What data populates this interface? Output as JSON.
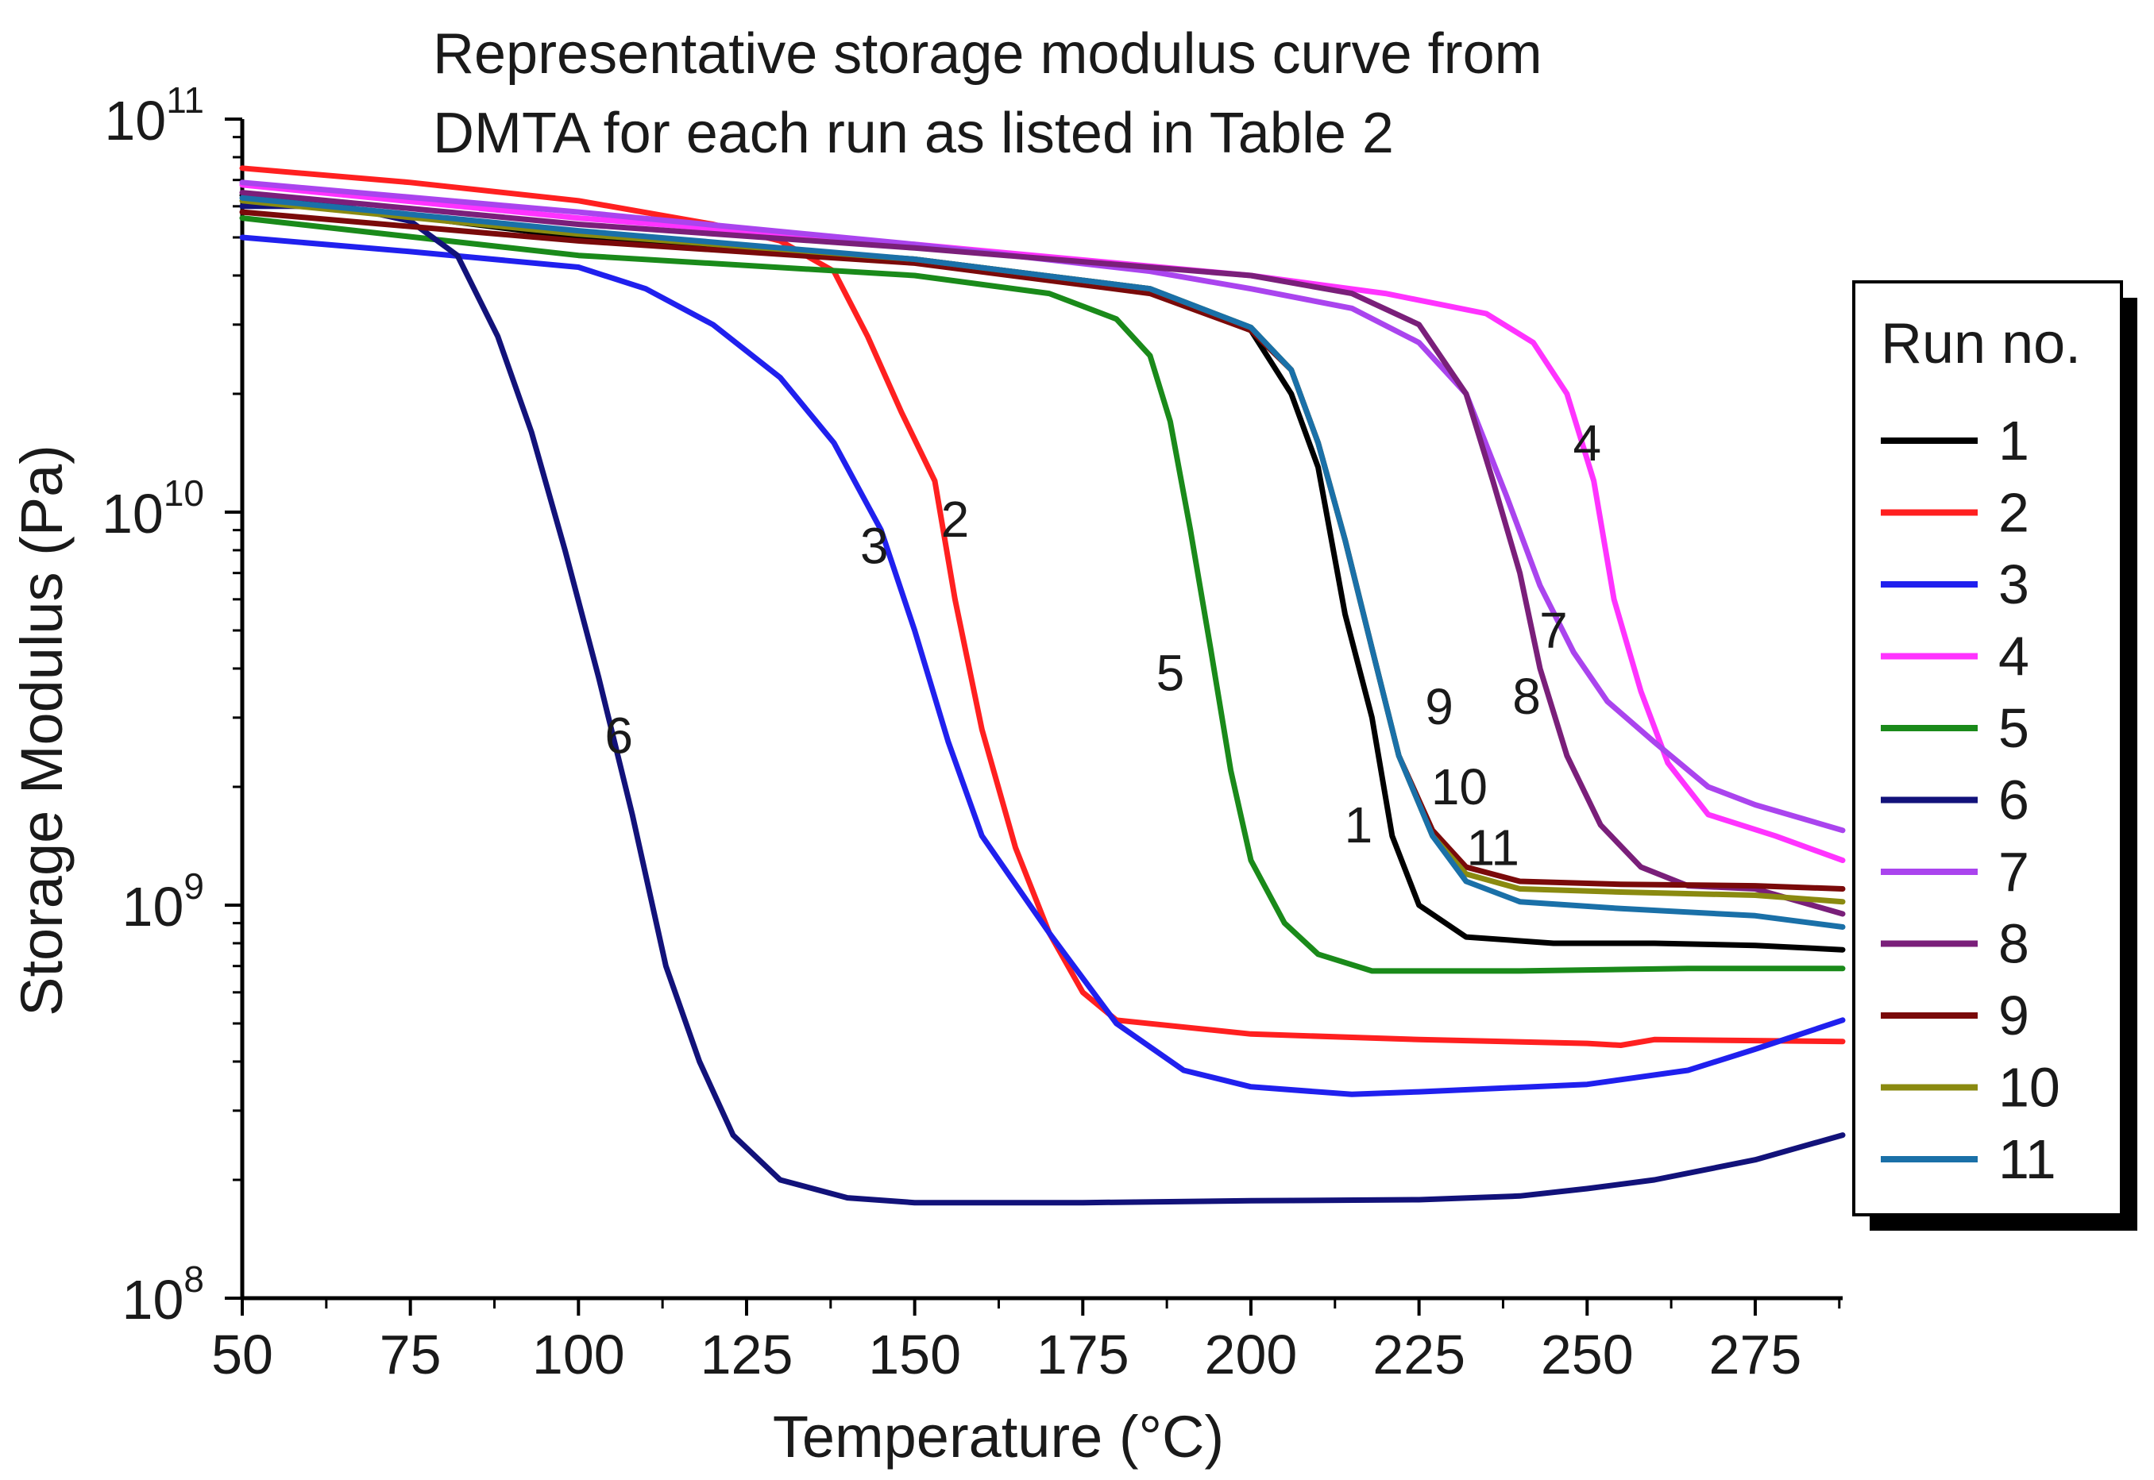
{
  "chart_data": {
    "type": "line",
    "title_lines": [
      "Representative storage modulus curve from",
      "DMTA for each run as listed in Table 2"
    ],
    "xlabel": "Temperature (°C)",
    "ylabel": "Storage Modulus (Pa)",
    "xlim": [
      50,
      288
    ],
    "ylim": [
      100000000.0,
      100000000000.0
    ],
    "yscale": "log",
    "x_ticks": [
      50,
      75,
      100,
      125,
      150,
      175,
      200,
      225,
      250,
      275
    ],
    "x_tick_labels": [
      "50",
      "75",
      "100",
      "125",
      "150",
      "175",
      "200",
      "225",
      "250",
      "275"
    ],
    "y_ticks": [
      {
        "value": 100000000.0,
        "base": "10",
        "exp": "8"
      },
      {
        "value": 1000000000.0,
        "base": "10",
        "exp": "9"
      },
      {
        "value": 10000000000.0,
        "base": "10",
        "exp": "10"
      },
      {
        "value": 100000000000.0,
        "base": "10",
        "exp": "11"
      }
    ],
    "legend": {
      "title": "Run no.",
      "position": "right"
    },
    "series": [
      {
        "name": "1",
        "color": "#000000",
        "label_text": "1",
        "label_at": [
          216,
          1600000000.0
        ],
        "points": [
          [
            50,
            64000000000.0
          ],
          [
            100,
            50000000000.0
          ],
          [
            150,
            44000000000.0
          ],
          [
            185,
            37000000000.0
          ],
          [
            200,
            29000000000.0
          ],
          [
            206,
            20000000000.0
          ],
          [
            210,
            13000000000.0
          ],
          [
            214,
            5500000000.0
          ],
          [
            218,
            3000000000.0
          ],
          [
            221,
            1500000000.0
          ],
          [
            225,
            1000000000.0
          ],
          [
            232,
            830000000.0
          ],
          [
            245,
            800000000.0
          ],
          [
            260,
            800000000.0
          ],
          [
            275,
            790000000.0
          ],
          [
            288,
            770000000.0
          ]
        ]
      },
      {
        "name": "2",
        "color": "#ff2020",
        "label_text": "2",
        "label_at": [
          156,
          9600000000.0
        ],
        "points": [
          [
            50,
            75000000000.0
          ],
          [
            75,
            69000000000.0
          ],
          [
            100,
            62000000000.0
          ],
          [
            120,
            54000000000.0
          ],
          [
            130,
            49000000000.0
          ],
          [
            138,
            41000000000.0
          ],
          [
            143,
            28000000000.0
          ],
          [
            148,
            18000000000.0
          ],
          [
            153,
            12000000000.0
          ],
          [
            156,
            6000000000.0
          ],
          [
            160,
            2800000000.0
          ],
          [
            165,
            1400000000.0
          ],
          [
            170,
            850000000.0
          ],
          [
            175,
            600000000.0
          ],
          [
            180,
            510000000.0
          ],
          [
            200,
            470000000.0
          ],
          [
            225,
            455000000.0
          ],
          [
            250,
            445000000.0
          ],
          [
            255,
            440000000.0
          ],
          [
            260,
            455000000.0
          ],
          [
            288,
            450000000.0
          ]
        ]
      },
      {
        "name": "3",
        "color": "#2020ee",
        "label_text": "3",
        "label_at": [
          144,
          8200000000.0
        ],
        "points": [
          [
            50,
            50000000000.0
          ],
          [
            75,
            46000000000.0
          ],
          [
            100,
            42000000000.0
          ],
          [
            110,
            37000000000.0
          ],
          [
            120,
            30000000000.0
          ],
          [
            130,
            22000000000.0
          ],
          [
            138,
            15000000000.0
          ],
          [
            145,
            9000000000.0
          ],
          [
            150,
            5000000000.0
          ],
          [
            155,
            2600000000.0
          ],
          [
            160,
            1500000000.0
          ],
          [
            170,
            850000000.0
          ],
          [
            180,
            500000000.0
          ],
          [
            190,
            380000000.0
          ],
          [
            200,
            345000000.0
          ],
          [
            215,
            330000000.0
          ],
          [
            225,
            335000000.0
          ],
          [
            250,
            350000000.0
          ],
          [
            265,
            380000000.0
          ],
          [
            275,
            430000000.0
          ],
          [
            288,
            510000000.0
          ]
        ]
      },
      {
        "name": "4",
        "color": "#ff33ff",
        "label_text": "4",
        "label_at": [
          250,
          15000000000.0
        ],
        "points": [
          [
            50,
            68000000000.0
          ],
          [
            100,
            56000000000.0
          ],
          [
            150,
            48000000000.0
          ],
          [
            200,
            40000000000.0
          ],
          [
            220,
            36000000000.0
          ],
          [
            235,
            32000000000.0
          ],
          [
            242,
            27000000000.0
          ],
          [
            247,
            20000000000.0
          ],
          [
            251,
            12000000000.0
          ],
          [
            254,
            6000000000.0
          ],
          [
            258,
            3500000000.0
          ],
          [
            262,
            2300000000.0
          ],
          [
            268,
            1700000000.0
          ],
          [
            278,
            1500000000.0
          ],
          [
            288,
            1300000000.0
          ]
        ]
      },
      {
        "name": "5",
        "color": "#1a8a1a",
        "label_text": "5",
        "label_at": [
          188,
          3900000000.0
        ],
        "points": [
          [
            50,
            56000000000.0
          ],
          [
            100,
            45000000000.0
          ],
          [
            150,
            40000000000.0
          ],
          [
            170,
            36000000000.0
          ],
          [
            180,
            31000000000.0
          ],
          [
            185,
            25000000000.0
          ],
          [
            188,
            17000000000.0
          ],
          [
            191,
            9000000000.0
          ],
          [
            194,
            4500000000.0
          ],
          [
            197,
            2200000000.0
          ],
          [
            200,
            1300000000.0
          ],
          [
            205,
            900000000.0
          ],
          [
            210,
            750000000.0
          ],
          [
            218,
            680000000.0
          ],
          [
            240,
            680000000.0
          ],
          [
            265,
            690000000.0
          ],
          [
            288,
            690000000.0
          ]
        ]
      },
      {
        "name": "6",
        "color": "#12127a",
        "label_text": "6",
        "label_at": [
          106,
          2700000000.0
        ],
        "points": [
          [
            50,
            60000000000.0
          ],
          [
            65,
            60000000000.0
          ],
          [
            75,
            55000000000.0
          ],
          [
            82,
            45000000000.0
          ],
          [
            88,
            28000000000.0
          ],
          [
            93,
            16000000000.0
          ],
          [
            98,
            8000000000.0
          ],
          [
            103,
            3800000000.0
          ],
          [
            108,
            1700000000.0
          ],
          [
            113,
            700000000.0
          ],
          [
            118,
            400000000.0
          ],
          [
            123,
            260000000.0
          ],
          [
            130,
            200000000.0
          ],
          [
            140,
            180000000.0
          ],
          [
            150,
            175000000.0
          ],
          [
            175,
            175000000.0
          ],
          [
            200,
            177000000.0
          ],
          [
            225,
            178000000.0
          ],
          [
            240,
            182000000.0
          ],
          [
            250,
            190000000.0
          ],
          [
            260,
            200000000.0
          ],
          [
            275,
            225000000.0
          ],
          [
            288,
            260000000.0
          ]
        ]
      },
      {
        "name": "7",
        "color": "#aa44ee",
        "label_text": "7",
        "label_at": [
          245,
          5000000000.0
        ],
        "points": [
          [
            50,
            69000000000.0
          ],
          [
            100,
            58000000000.0
          ],
          [
            150,
            48000000000.0
          ],
          [
            185,
            41000000000.0
          ],
          [
            200,
            37000000000.0
          ],
          [
            215,
            33000000000.0
          ],
          [
            225,
            27000000000.0
          ],
          [
            232,
            20000000000.0
          ],
          [
            238,
            11000000000.0
          ],
          [
            243,
            6500000000.0
          ],
          [
            248,
            4400000000.0
          ],
          [
            253,
            3300000000.0
          ],
          [
            260,
            2600000000.0
          ],
          [
            268,
            2000000000.0
          ],
          [
            275,
            1800000000.0
          ],
          [
            288,
            1550000000.0
          ]
        ]
      },
      {
        "name": "8",
        "color": "#7a1f7a",
        "label_text": "8",
        "label_at": [
          241,
          3400000000.0
        ],
        "points": [
          [
            50,
            65000000000.0
          ],
          [
            100,
            54000000000.0
          ],
          [
            150,
            47000000000.0
          ],
          [
            200,
            40000000000.0
          ],
          [
            215,
            36000000000.0
          ],
          [
            225,
            30000000000.0
          ],
          [
            232,
            20000000000.0
          ],
          [
            236,
            12000000000.0
          ],
          [
            240,
            7000000000.0
          ],
          [
            243,
            4000000000.0
          ],
          [
            247,
            2400000000.0
          ],
          [
            252,
            1600000000.0
          ],
          [
            258,
            1250000000.0
          ],
          [
            265,
            1120000000.0
          ],
          [
            275,
            1100000000.0
          ],
          [
            288,
            950000000.0
          ]
        ]
      },
      {
        "name": "9",
        "color": "#7a0a0a",
        "label_text": "9",
        "label_at": [
          228,
          3200000000.0
        ],
        "points": [
          [
            50,
            58000000000.0
          ],
          [
            100,
            49000000000.0
          ],
          [
            150,
            43000000000.0
          ],
          [
            185,
            36000000000.0
          ],
          [
            200,
            29000000000.0
          ],
          [
            206,
            23000000000.0
          ],
          [
            210,
            15000000000.0
          ],
          [
            214,
            8500000000.0
          ],
          [
            218,
            4500000000.0
          ],
          [
            222,
            2400000000.0
          ],
          [
            227,
            1550000000.0
          ],
          [
            232,
            1250000000.0
          ],
          [
            240,
            1150000000.0
          ],
          [
            255,
            1130000000.0
          ],
          [
            275,
            1120000000.0
          ],
          [
            288,
            1100000000.0
          ]
        ]
      },
      {
        "name": "10",
        "color": "#8a8a10",
        "label_text": "10",
        "label_at": [
          231,
          2000000000.0
        ],
        "points": [
          [
            50,
            62000000000.0
          ],
          [
            100,
            51000000000.0
          ],
          [
            150,
            44000000000.0
          ],
          [
            185,
            37000000000.0
          ],
          [
            200,
            29500000000.0
          ],
          [
            206,
            23000000000.0
          ],
          [
            210,
            15000000000.0
          ],
          [
            214,
            8500000000.0
          ],
          [
            218,
            4500000000.0
          ],
          [
            222,
            2400000000.0
          ],
          [
            227,
            1500000000.0
          ],
          [
            232,
            1200000000.0
          ],
          [
            240,
            1100000000.0
          ],
          [
            255,
            1080000000.0
          ],
          [
            275,
            1060000000.0
          ],
          [
            288,
            1020000000.0
          ]
        ]
      },
      {
        "name": "11",
        "color": "#1a70a8",
        "label_text": "11",
        "label_at": [
          236,
          1400000000.0
        ],
        "points": [
          [
            50,
            63000000000.0
          ],
          [
            100,
            52000000000.0
          ],
          [
            150,
            44000000000.0
          ],
          [
            185,
            37000000000.0
          ],
          [
            200,
            29500000000.0
          ],
          [
            206,
            23000000000.0
          ],
          [
            210,
            15000000000.0
          ],
          [
            214,
            8500000000.0
          ],
          [
            218,
            4500000000.0
          ],
          [
            222,
            2400000000.0
          ],
          [
            227,
            1500000000.0
          ],
          [
            232,
            1150000000.0
          ],
          [
            240,
            1020000000.0
          ],
          [
            255,
            980000000.0
          ],
          [
            275,
            940000000.0
          ],
          [
            288,
            880000000.0
          ]
        ]
      }
    ]
  }
}
